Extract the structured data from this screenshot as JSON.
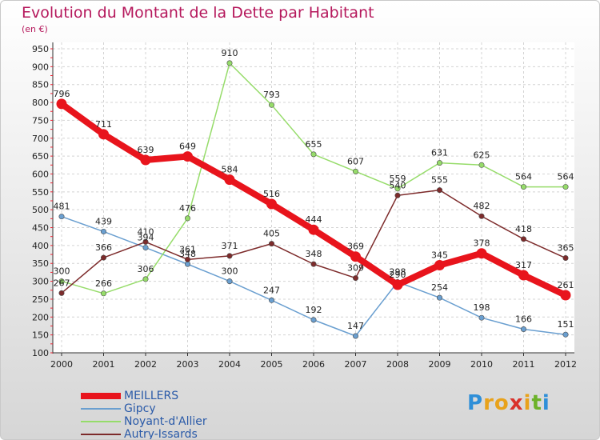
{
  "title": "Evolution du Montant de la Dette par Habitant",
  "unit_label": "(en €)",
  "brand": "Proxiti",
  "chart_data": {
    "type": "line",
    "title": "Evolution du Montant de la Dette par Habitant",
    "ylabel": "(en €)",
    "xlabel": "",
    "x": [
      "2000",
      "2001",
      "2002",
      "2003",
      "2004",
      "2005",
      "2006",
      "2007",
      "2008",
      "2009",
      "2010",
      "2011",
      "2012"
    ],
    "ylim": [
      100,
      950
    ],
    "yticks": [
      100,
      150,
      200,
      250,
      300,
      350,
      400,
      450,
      500,
      550,
      600,
      650,
      700,
      750,
      800,
      850,
      900,
      950
    ],
    "grid": true,
    "legend_position": "bottom-left",
    "series": [
      {
        "name": "MEILLERS",
        "color": "#e8141c",
        "emphasis": true,
        "values": [
          796,
          711,
          639,
          649,
          584,
          516,
          444,
          369,
          290,
          345,
          378,
          317,
          261
        ]
      },
      {
        "name": "Gipcy",
        "color": "#6a9fd0",
        "values": [
          481,
          439,
          394,
          348,
          300,
          247,
          192,
          147,
          298,
          254,
          198,
          166,
          151
        ]
      },
      {
        "name": "Noyant-d'Allier",
        "color": "#96dc6a",
        "values": [
          300,
          266,
          306,
          476,
          910,
          793,
          655,
          607,
          559,
          631,
          625,
          564,
          564
        ]
      },
      {
        "name": "Autry-Issards",
        "color": "#7d2b2b",
        "values": [
          267,
          366,
          410,
          361,
          371,
          405,
          348,
          309,
          540,
          555,
          482,
          418,
          365
        ]
      }
    ]
  }
}
